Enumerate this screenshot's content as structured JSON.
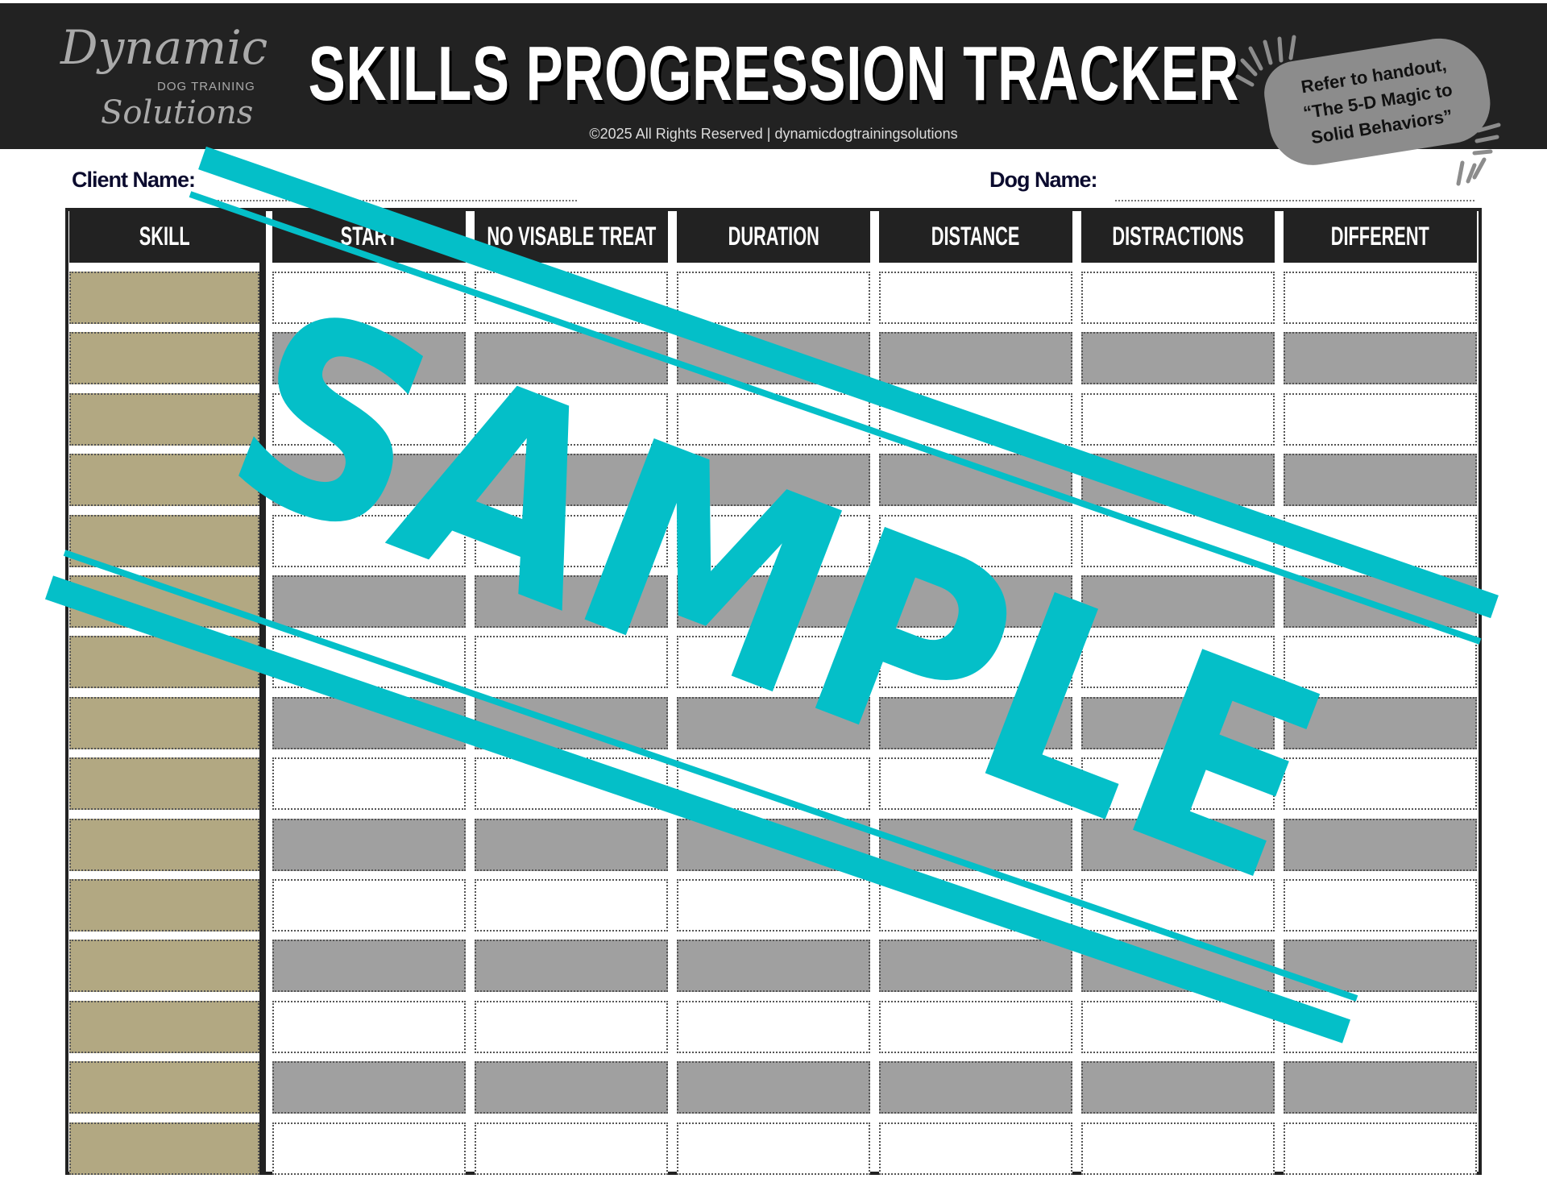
{
  "header": {
    "title": "SKILLS PROGRESSION TRACKER",
    "subtitle": "©2025 All Rights Reserved | dynamicdogtrainingsolutions",
    "logo": {
      "line1": "Dynamic",
      "line2": "DOG TRAINING",
      "line3": "Solutions"
    },
    "badge": [
      "Refer to handout,",
      "“The 5-D Magic to",
      "Solid Behaviors”"
    ]
  },
  "fields": {
    "client_label": "Client Name:",
    "client_value": "",
    "dog_label": "Dog Name:",
    "dog_value": ""
  },
  "table": {
    "columns": [
      "SKILL",
      "START",
      "NO VISABLE TREAT",
      "DURATION",
      "DISTANCE",
      "DISTRACTIONS",
      "DIFFERENT"
    ]
  },
  "watermark": {
    "text": "SAMPLE"
  },
  "colors": {
    "header_bg": "#222222",
    "skill_fill": "#b2a882",
    "shaded_row": "#a0a0a0",
    "watermark": "#04bfc8"
  }
}
